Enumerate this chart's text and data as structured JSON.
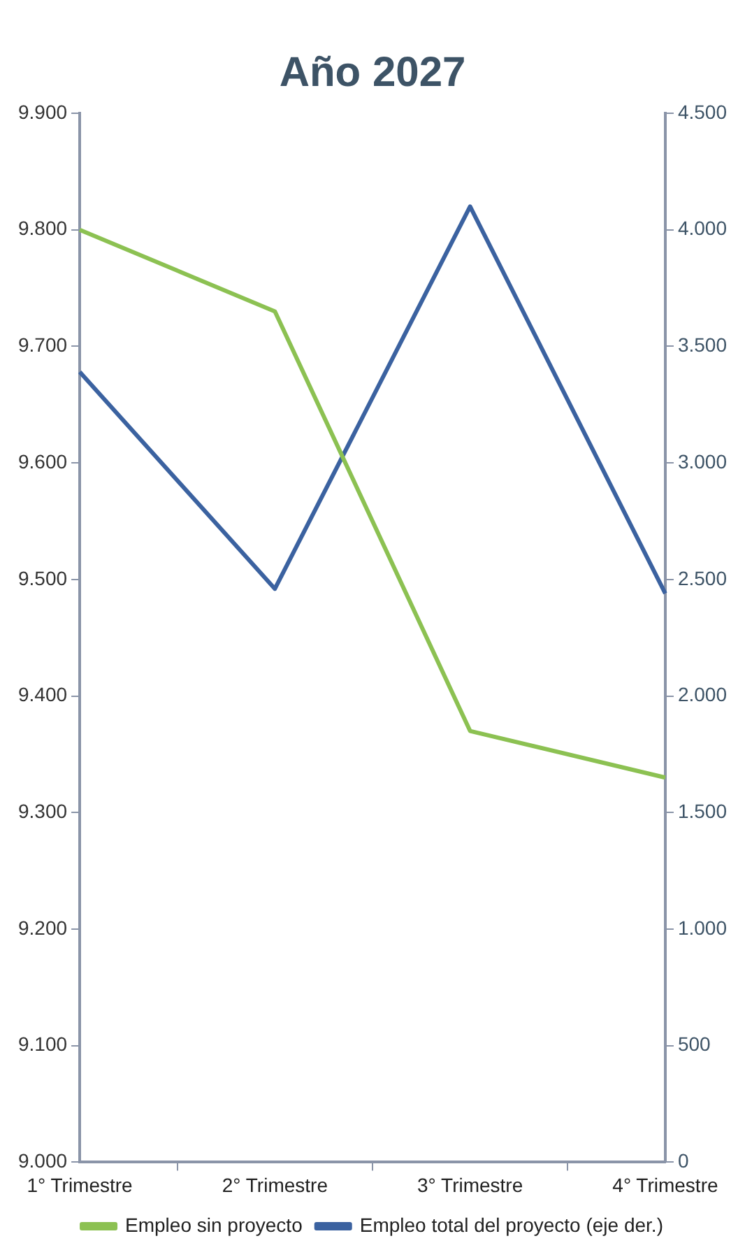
{
  "chart_data": {
    "type": "line",
    "title": "Año 2027",
    "categories": [
      "1° Trimestre",
      "2° Trimestre",
      "3° Trimestre",
      "4° Trimestre"
    ],
    "series": [
      {
        "name": "Empleo sin proyecto",
        "color": "#8cc152",
        "values": [
          9800,
          9730,
          9370,
          9330
        ]
      },
      {
        "name": "Empleo total del proyecto (eje der.)",
        "color": "#3b62a0",
        "axis": "y2",
        "values": [
          3390,
          2460,
          4100,
          2440
        ]
      }
    ],
    "ylim": [
      9000,
      9900
    ],
    "yticks": [
      {
        "value": 9000,
        "label": "9.000"
      },
      {
        "value": 9100,
        "label": "9.100"
      },
      {
        "value": 9200,
        "label": "9.200"
      },
      {
        "value": 9300,
        "label": "9.300"
      },
      {
        "value": 9400,
        "label": "9.400"
      },
      {
        "value": 9500,
        "label": "9.500"
      },
      {
        "value": 9600,
        "label": "9.600"
      },
      {
        "value": 9700,
        "label": "9.700"
      },
      {
        "value": 9800,
        "label": "9.800"
      },
      {
        "value": 9900,
        "label": "9.900"
      }
    ],
    "y2lim": [
      0,
      4500
    ],
    "y2ticks": [
      0,
      500,
      {
        "value": 1000,
        "label": "1.000"
      },
      {
        "value": 1500,
        "label": "1.500"
      },
      {
        "value": 2000,
        "label": "2.000"
      },
      {
        "value": 2500,
        "label": "2.500"
      },
      {
        "value": 3000,
        "label": "3.000"
      },
      {
        "value": 3500,
        "label": "3.500"
      },
      {
        "value": 4000,
        "label": "4.000"
      },
      {
        "value": 4500,
        "label": "4.500"
      }
    ],
    "grid": false,
    "legend": "bottom",
    "marker": "none",
    "line_style": "solid"
  }
}
